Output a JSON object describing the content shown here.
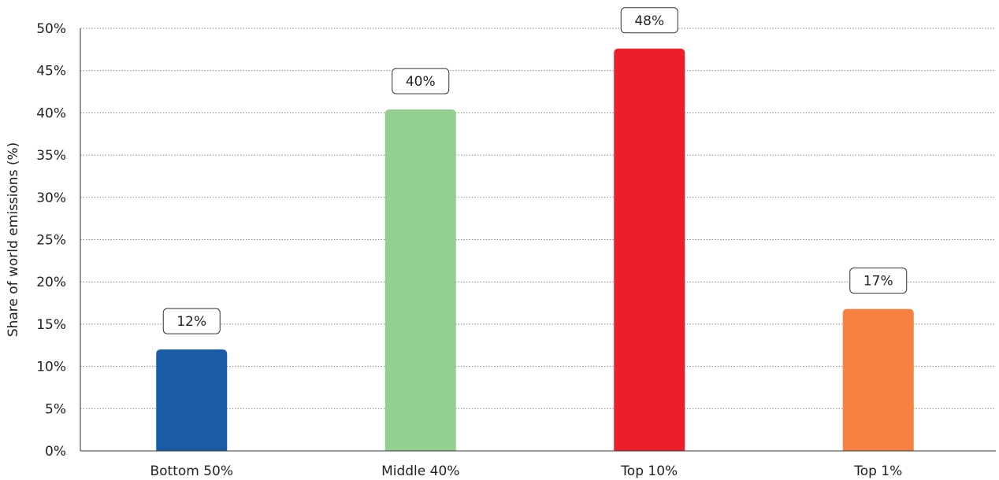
{
  "chart_data": {
    "type": "bar",
    "categories": [
      "Bottom 50%",
      "Middle 40%",
      "Top 10%",
      "Top 1%"
    ],
    "values": [
      12,
      40.4,
      47.6,
      16.8
    ],
    "data_labels": [
      "12%",
      "40%",
      "48%",
      "17%"
    ],
    "colors": [
      "#1a5ba6",
      "#93cf8f",
      "#ee1d2b",
      "#f68141"
    ],
    "title": "",
    "xlabel": "",
    "ylabel": "Share of world emissions (%)",
    "ylim": [
      0,
      50
    ],
    "yticks": [
      0,
      5,
      10,
      15,
      20,
      25,
      30,
      35,
      40,
      45,
      50
    ],
    "ytick_labels": [
      "0%",
      "5%",
      "10%",
      "15%",
      "20%",
      "25%",
      "30%",
      "35%",
      "40%",
      "45%",
      "50%"
    ],
    "grid": true,
    "legend": "none"
  }
}
